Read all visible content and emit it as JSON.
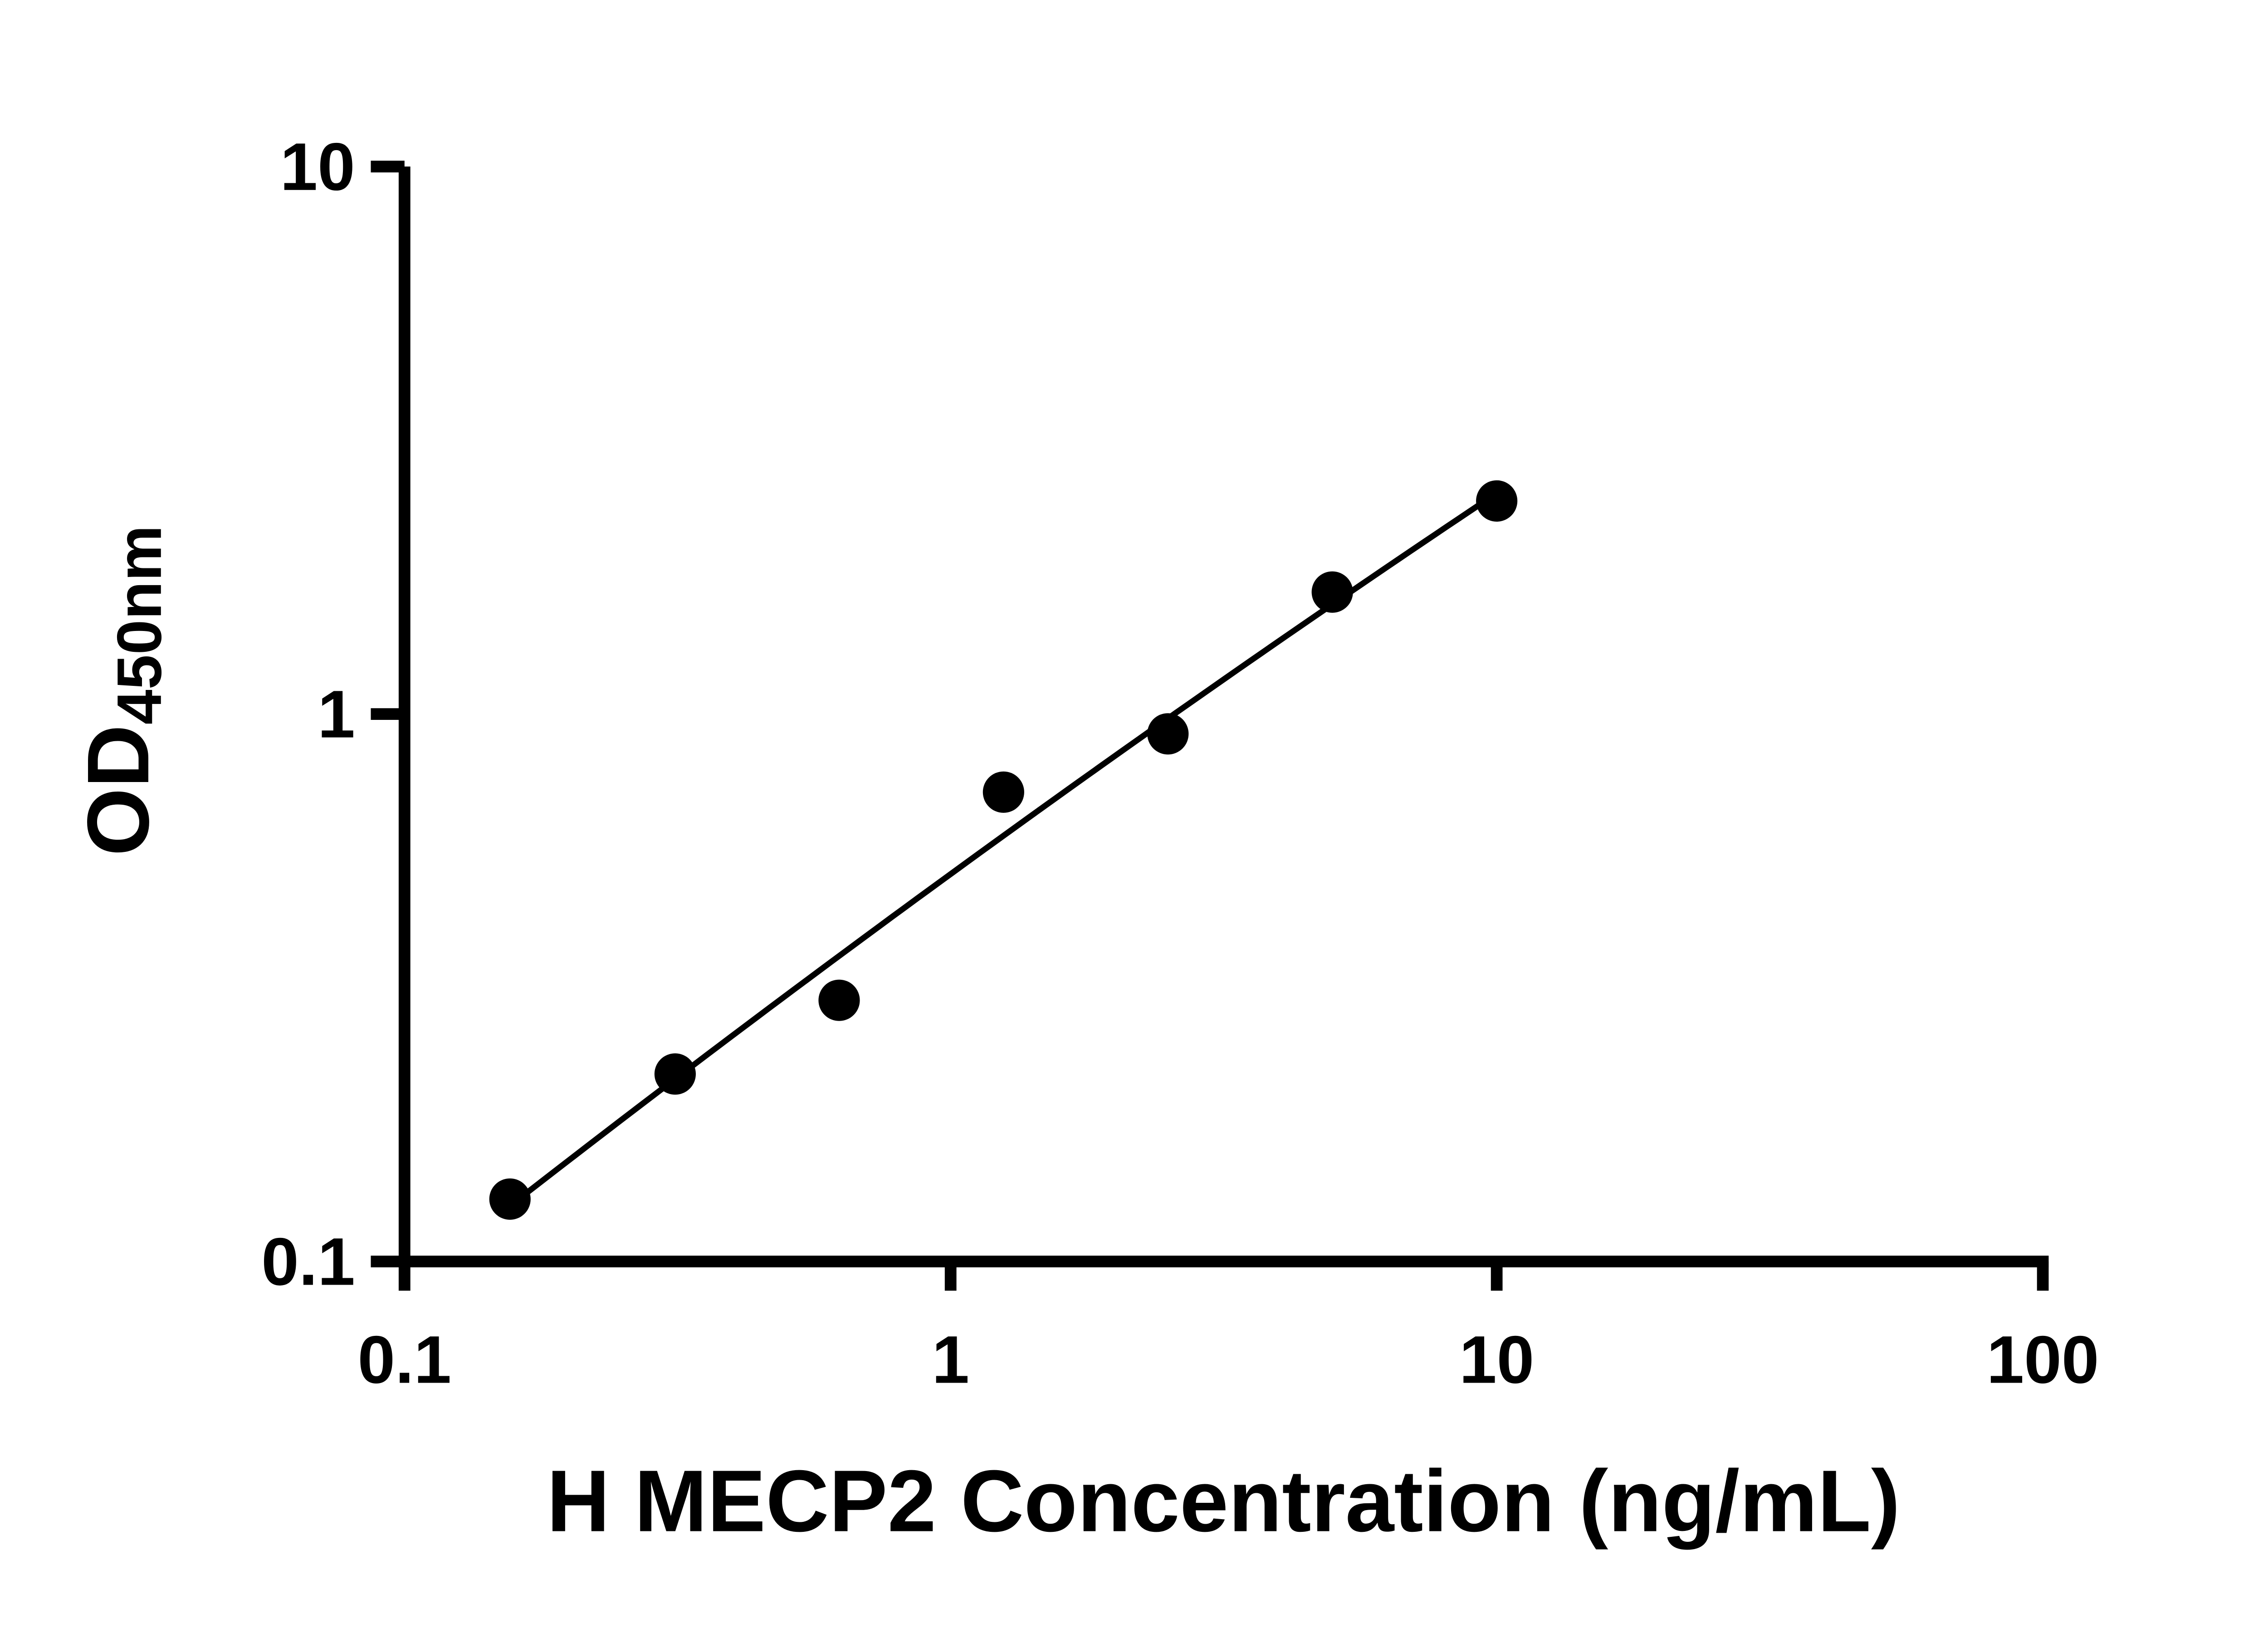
{
  "figure": {
    "background_color": "#ffffff"
  },
  "chart_data": {
    "type": "scatter",
    "title": "",
    "xlabel": "H MECP2 Concentration (ng/mL)",
    "ylabel": "OD",
    "ylabel_subscript": "450nm",
    "x_scale": "log10",
    "y_scale": "log10",
    "xlim": [
      0.1,
      100
    ],
    "ylim": [
      0.1,
      10
    ],
    "x_ticks": [
      "0.1",
      "1",
      "10",
      "100"
    ],
    "y_ticks": [
      "0.1",
      "1",
      "10"
    ],
    "grid": false,
    "legend": null,
    "trendline": "smooth fitted curve through points",
    "marker_shape": "circle",
    "marker_color": "#000000",
    "curve_color": "#000000",
    "axis_color": "#000000",
    "points": [
      {
        "x": 0.156,
        "y": 0.13
      },
      {
        "x": 0.313,
        "y": 0.22
      },
      {
        "x": 0.625,
        "y": 0.3
      },
      {
        "x": 1.25,
        "y": 0.72
      },
      {
        "x": 2.5,
        "y": 0.92
      },
      {
        "x": 5.0,
        "y": 1.67
      },
      {
        "x": 10.0,
        "y": 2.45
      }
    ]
  }
}
